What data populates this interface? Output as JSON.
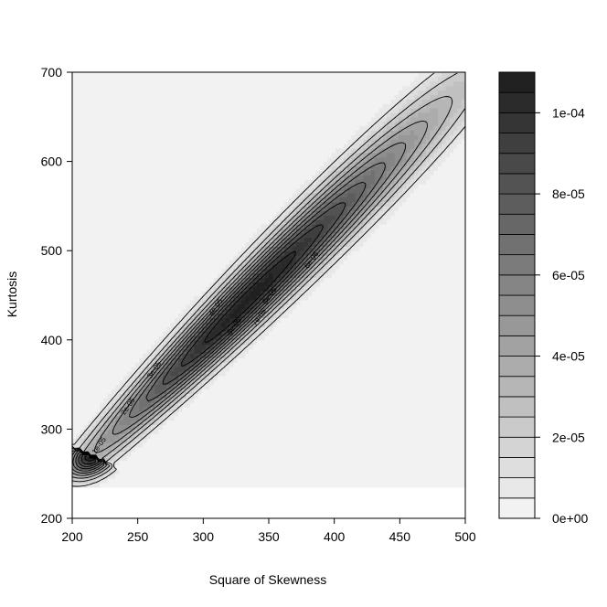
{
  "chart_data": {
    "type": "heatmap",
    "subtype": "filled-contour",
    "title": "",
    "xlabel": "Square of Skewness",
    "ylabel": "Kurtosis",
    "xlim": [
      200,
      500
    ],
    "ylim": [
      200,
      700
    ],
    "xticks": [
      "200",
      "250",
      "300",
      "350",
      "400",
      "450",
      "500"
    ],
    "yticks": [
      "200",
      "300",
      "400",
      "500",
      "600",
      "700"
    ],
    "colorbar": {
      "min": 0,
      "max": 0.00011,
      "levels": 22,
      "ticks": [
        {
          "value": 0,
          "label": "0e+00"
        },
        {
          "value": 2e-05,
          "label": "2e-05"
        },
        {
          "value": 4e-05,
          "label": "4e-05"
        },
        {
          "value": 6e-05,
          "label": "6e-05"
        },
        {
          "value": 8e-05,
          "label": "8e-05"
        },
        {
          "value": 0.0001,
          "label": "1e-04"
        }
      ],
      "color_low": "#f7f7f7",
      "color_high": "#1c1c1c"
    },
    "density_model": {
      "ridge_start": {
        "x": 215,
        "y": 270
      },
      "ridge_end": {
        "x": 490,
        "y": 675
      },
      "peak": {
        "x": 330,
        "y": 445
      },
      "peak_density": 0.000108,
      "data_ymin": 235
    },
    "contour_levels": [
      1e-05,
      2e-05,
      3e-05,
      4e-05,
      5e-05,
      6e-05,
      7e-05,
      8e-05,
      9e-05,
      0.0001
    ],
    "contour_labels": [
      {
        "text": "1e-05",
        "x": 222,
        "y": 280
      },
      {
        "text": "2e-05",
        "x": 244,
        "y": 324
      },
      {
        "text": "3e-05",
        "x": 264,
        "y": 365
      },
      {
        "text": "4e-05",
        "x": 311,
        "y": 435
      },
      {
        "text": "5e-05",
        "x": 352,
        "y": 448
      },
      {
        "text": "6e-05",
        "x": 384,
        "y": 488
      },
      {
        "text": "7e-05",
        "x": 344,
        "y": 424
      },
      {
        "text": "8e-05",
        "x": 325,
        "y": 414
      }
    ],
    "grid": false
  }
}
